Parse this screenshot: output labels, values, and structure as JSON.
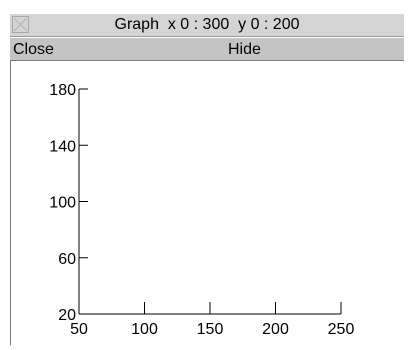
{
  "window": {
    "title": "Graph  x 0 : 300  y 0 : 200",
    "close_glyph": "close-icon"
  },
  "toolbar": {
    "close_label": "Close",
    "hide_label": "Hide"
  },
  "chart_data": {
    "type": "line",
    "title": "",
    "xlabel": "",
    "ylabel": "",
    "xlim": [
      50,
      250
    ],
    "ylim": [
      20,
      180
    ],
    "x_ticks": [
      50,
      100,
      150,
      200,
      250
    ],
    "y_ticks": [
      20,
      60,
      100,
      140,
      180
    ],
    "x": [],
    "series": [],
    "grid": false
  }
}
